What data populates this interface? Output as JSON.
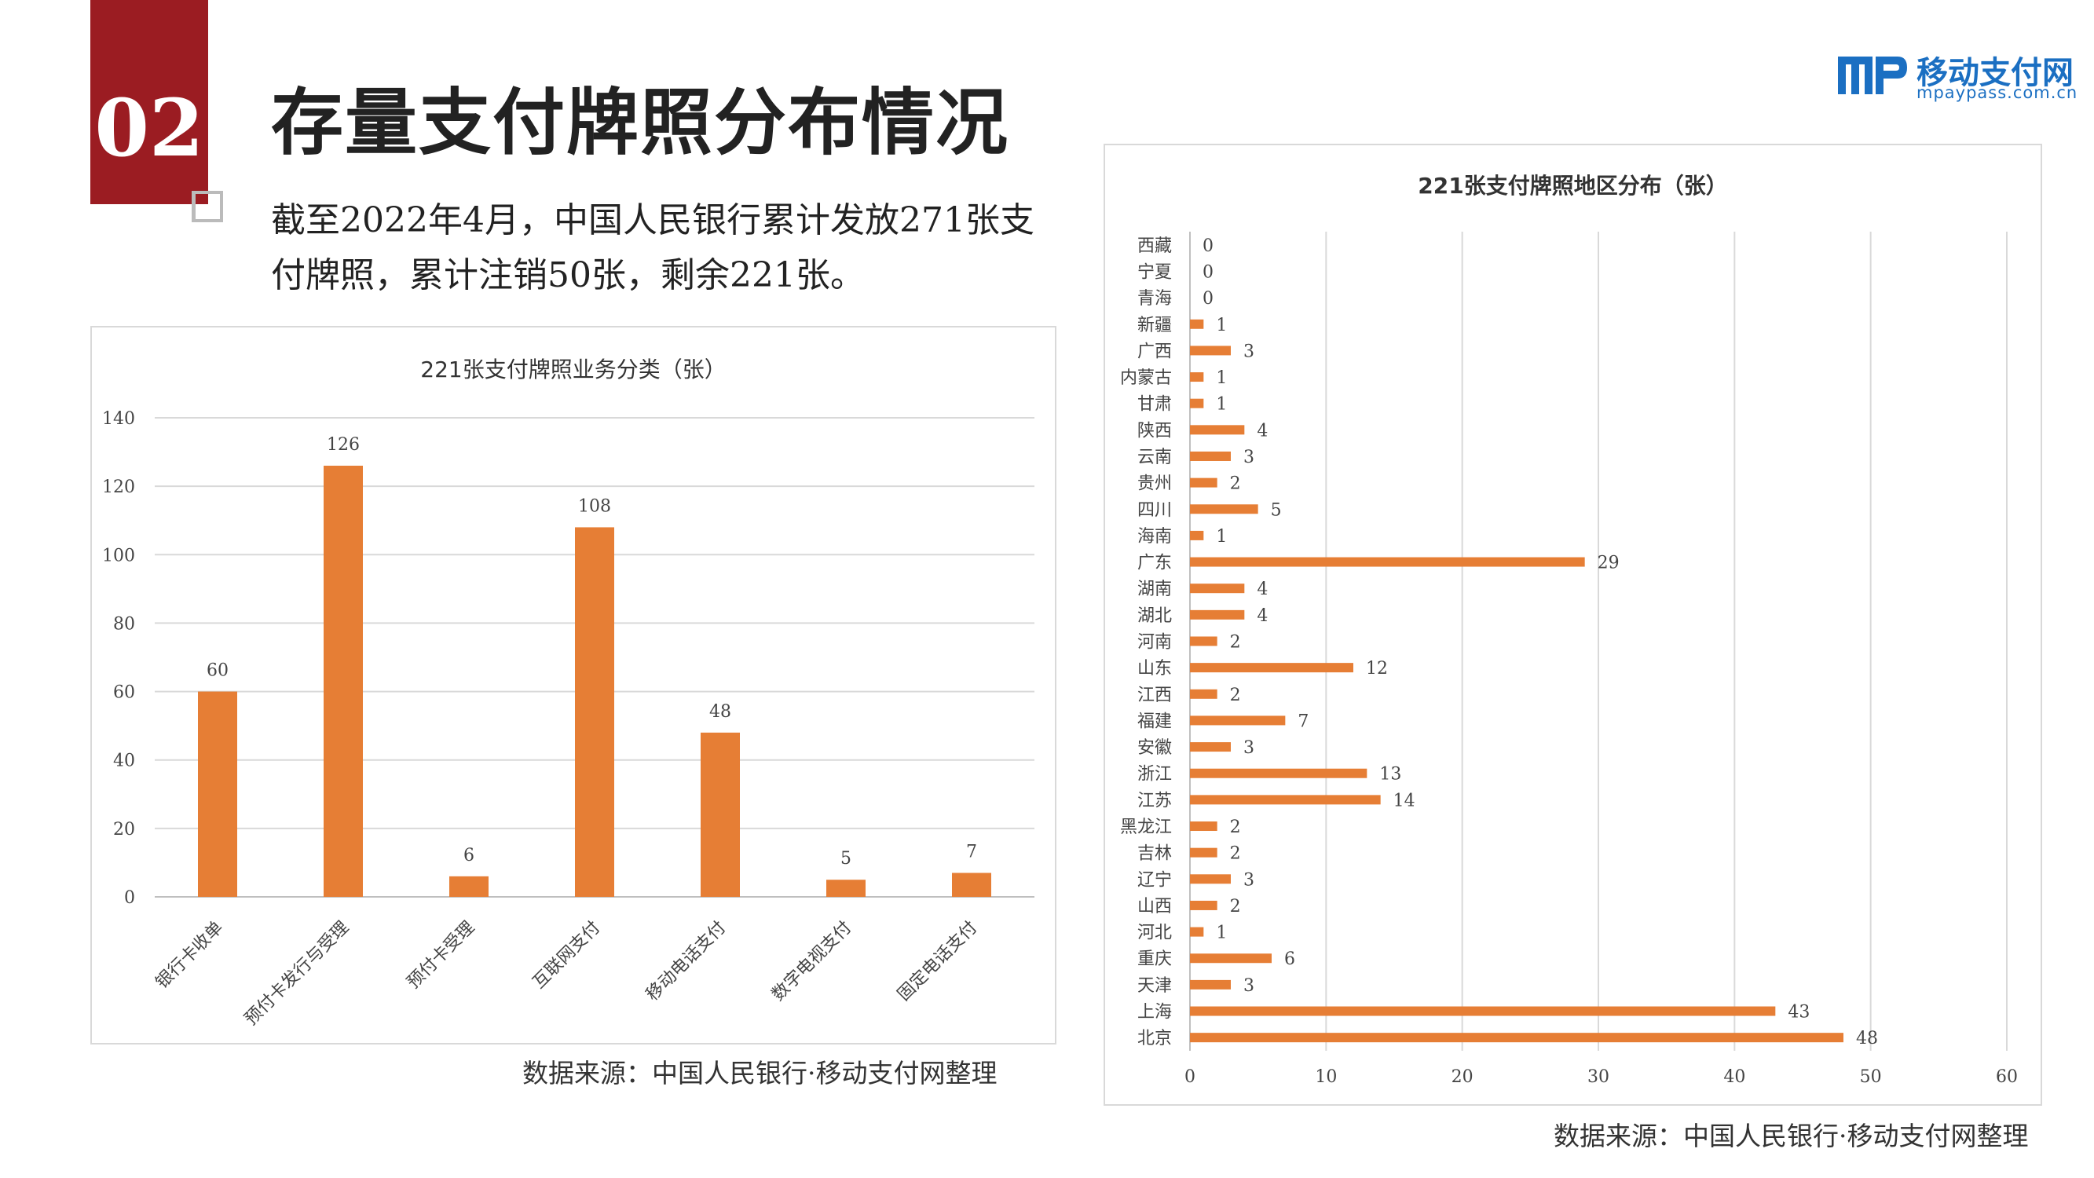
{
  "section_number": "02",
  "page_title": "存量支付牌照分布情况",
  "intro_text": "截至2022年4月，中国人民银行累计发放271张支付牌照，累计注销50张，剩余221张。",
  "logo": {
    "name_cn": "移动支付网",
    "domain": "mpaypass.com.cn",
    "color": "#1b6fc2"
  },
  "source_left": "数据来源：中国人民银行·移动支付网整理",
  "source_right": "数据来源：中国人民银行·移动支付网整理",
  "colors": {
    "accent_red": "#9b1c22",
    "bar": "#e67e35"
  },
  "chart_data": [
    {
      "type": "bar",
      "title": "221张支付牌照业务分类（张）",
      "categories": [
        "银行卡收单",
        "预付卡发行与受理",
        "预付卡受理",
        "互联网支付",
        "移动电话支付",
        "数字电视支付",
        "固定电话支付"
      ],
      "values": [
        60,
        126,
        6,
        108,
        48,
        5,
        7
      ],
      "xlabel": "",
      "ylabel": "",
      "ylim": [
        0,
        140
      ],
      "yticks": [
        0,
        20,
        40,
        60,
        80,
        100,
        120,
        140
      ],
      "grid": true,
      "data_labels": true
    },
    {
      "type": "bar",
      "orientation": "horizontal",
      "title": "221张支付牌照地区分布（张）",
      "categories": [
        "西藏",
        "宁夏",
        "青海",
        "新疆",
        "广西",
        "内蒙古",
        "甘肃",
        "陕西",
        "云南",
        "贵州",
        "四川",
        "海南",
        "广东",
        "湖南",
        "湖北",
        "河南",
        "山东",
        "江西",
        "福建",
        "安徽",
        "浙江",
        "江苏",
        "黑龙江",
        "吉林",
        "辽宁",
        "山西",
        "河北",
        "重庆",
        "天津",
        "上海",
        "北京"
      ],
      "values": [
        0,
        0,
        0,
        1,
        3,
        1,
        1,
        4,
        3,
        2,
        5,
        1,
        29,
        4,
        4,
        2,
        12,
        2,
        7,
        3,
        13,
        14,
        2,
        2,
        3,
        2,
        1,
        6,
        3,
        43,
        48
      ],
      "xlabel": "",
      "ylabel": "",
      "xlim": [
        0,
        60
      ],
      "xticks": [
        0,
        10,
        20,
        30,
        40,
        50,
        60
      ],
      "grid": true,
      "data_labels": true
    }
  ]
}
